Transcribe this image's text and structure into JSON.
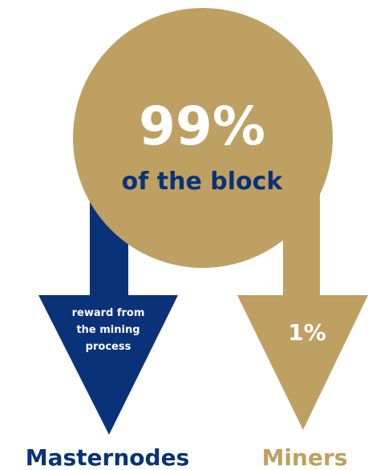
{
  "colors": {
    "gold": "#BEA062",
    "navy": "#0A3278",
    "white": "#FFFFFF"
  },
  "circle": {
    "percent": "99%",
    "subtitle": "of the block"
  },
  "left_arrow": {
    "text_lines": [
      "reward from",
      "the mining",
      "process"
    ],
    "label": "Masternodes"
  },
  "right_arrow": {
    "text": "1%",
    "label": "Miners"
  }
}
